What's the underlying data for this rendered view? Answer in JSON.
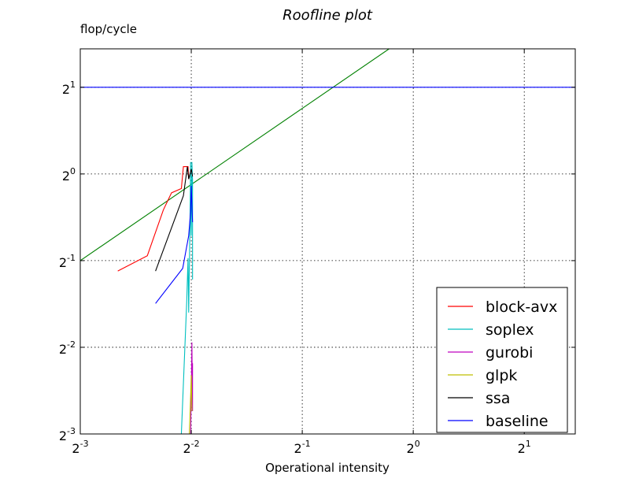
{
  "chart_data": {
    "type": "line",
    "title": "Roofline plot",
    "xlabel": "Operational intensity",
    "ylabel": "flop/cycle",
    "xscale": "log2",
    "yscale": "log2",
    "xlim": [
      0.125,
      2.75
    ],
    "ylim": [
      0.125,
      2.72
    ],
    "grid": true,
    "legend_position": "lower-right",
    "x_ticks": [
      {
        "value": 0.125,
        "base": "2",
        "exp": "-3"
      },
      {
        "value": 0.25,
        "base": "2",
        "exp": "-2"
      },
      {
        "value": 0.5,
        "base": "2",
        "exp": "-1"
      },
      {
        "value": 1,
        "base": "2",
        "exp": "0"
      },
      {
        "value": 2,
        "base": "2",
        "exp": "1"
      }
    ],
    "y_ticks": [
      {
        "value": 0.125,
        "base": "2",
        "exp": "-3"
      },
      {
        "value": 0.25,
        "base": "2",
        "exp": "-2"
      },
      {
        "value": 0.5,
        "base": "2",
        "exp": "-1"
      },
      {
        "value": 1,
        "base": "2",
        "exp": "0"
      },
      {
        "value": 2,
        "base": "2",
        "exp": "1"
      }
    ],
    "roof_lines": [
      {
        "color": "#008000",
        "points": [
          [
            0.125,
            0.5
          ],
          [
            0.86,
            2.72
          ]
        ]
      }
    ],
    "series": [
      {
        "name": "block-avx",
        "color": "#ff0000",
        "points": [
          [
            0.158,
            0.46
          ],
          [
            0.19,
            0.52
          ],
          [
            0.21,
            0.75
          ],
          [
            0.221,
            0.86
          ],
          [
            0.235,
            0.89
          ],
          [
            0.238,
            1.06
          ],
          [
            0.245,
            1.06
          ],
          [
            0.246,
            0.96
          ],
          [
            0.25,
            1.04
          ]
        ]
      },
      {
        "name": "soplex",
        "color": "#00bfbf",
        "points": [
          [
            0.235,
            0.125
          ],
          [
            0.243,
            0.36
          ],
          [
            0.245,
            0.51
          ],
          [
            0.246,
            0.33
          ],
          [
            0.248,
            0.68
          ],
          [
            0.249,
            1.1
          ],
          [
            0.249,
            0.72
          ],
          [
            0.25,
            0.61
          ],
          [
            0.251,
            1.1
          ],
          [
            0.252,
            0.95
          ],
          [
            0.252,
            0.43
          ]
        ]
      },
      {
        "name": "gurobi",
        "color": "#bf00bf",
        "points": [
          [
            0.249,
            0.125
          ],
          [
            0.25,
            0.17
          ],
          [
            0.251,
            0.26
          ],
          [
            0.252,
            0.15
          ],
          [
            0.252,
            0.22
          ]
        ]
      },
      {
        "name": "glpk",
        "color": "#bfbf00",
        "points": [
          [
            0.247,
            0.125
          ],
          [
            0.249,
            0.17
          ],
          [
            0.25,
            0.2
          ],
          [
            0.251,
            0.15
          ]
        ]
      },
      {
        "name": "ssa",
        "color": "#000000",
        "points": [
          [
            0.2,
            0.46
          ],
          [
            0.238,
            0.84
          ],
          [
            0.244,
            1.06
          ],
          [
            0.246,
            0.96
          ],
          [
            0.25,
            1.04
          ],
          [
            0.252,
            0.98
          ]
        ]
      },
      {
        "name": "baseline",
        "color": "#0000ff",
        "points": [
          [
            0.2,
            0.355
          ],
          [
            0.237,
            0.47
          ],
          [
            0.246,
            0.61
          ],
          [
            0.249,
            0.74
          ],
          [
            0.25,
            0.91
          ],
          [
            0.252,
            0.68
          ]
        ]
      },
      {
        "name": "",
        "color": "#0000ff",
        "points": [
          [
            0.125,
            2
          ],
          [
            2.75,
            2
          ]
        ]
      }
    ]
  }
}
